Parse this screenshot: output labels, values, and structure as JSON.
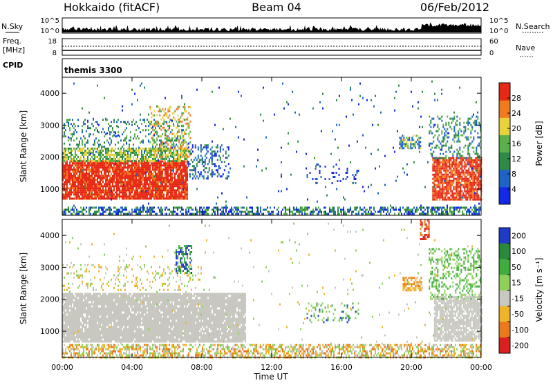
{
  "header": {
    "station": "Hokkaido (fitACF)",
    "beam": "Beam 04",
    "date": "06/Feb/2012"
  },
  "strip_labels": {
    "nsky": "N.Sky",
    "nsearch": "N.Search",
    "freq_line1": "Freq.",
    "freq_line2": "[MHz]",
    "nave": "Nave",
    "cpid": "CPID",
    "program": "themis 3300"
  },
  "strip_ticks": {
    "nsky_left": [
      "10^5",
      "10^0"
    ],
    "nsky_right": [
      "10^5",
      "10^0"
    ],
    "freq_left": [
      "18",
      "8"
    ],
    "nave_right": [
      "60",
      "0"
    ]
  },
  "axes_text": {
    "ylabel": "Slant Range [km]",
    "xlabel": "Time UT",
    "power_label": "Power [dB]",
    "velocity_label": "Velocity [m s⁻¹]"
  },
  "chart_data": [
    {
      "type": "heatmap",
      "name": "power",
      "x_range_hours": [
        0,
        24
      ],
      "x_ticks": [
        "00:00",
        "04:00",
        "08:00",
        "12:00",
        "16:00",
        "20:00",
        "00:00"
      ],
      "ylabel": "Slant Range [km]",
      "ylim": [
        180,
        4500
      ],
      "y_ticks": [
        1000,
        2000,
        3000,
        4000
      ],
      "colorbar": {
        "label": "Power [dB]",
        "ticks": [
          4,
          8,
          12,
          16,
          20,
          24,
          28
        ],
        "range": [
          0,
          32
        ],
        "colors": [
          "#1428e8",
          "#1e64c8",
          "#2e8a46",
          "#5ab04a",
          "#e8d23c",
          "#f07a1e",
          "#e62814"
        ]
      }
    },
    {
      "type": "heatmap",
      "name": "velocity",
      "x_range_hours": [
        0,
        24
      ],
      "x_ticks": [
        "00:00",
        "04:00",
        "08:00",
        "12:00",
        "16:00",
        "20:00",
        "00:00"
      ],
      "xlabel": "Time UT",
      "ylabel": "Slant Range [km]",
      "ylim": [
        180,
        4500
      ],
      "y_ticks": [
        1000,
        2000,
        3000,
        4000
      ],
      "colorbar": {
        "label": "Velocity [m s⁻¹]",
        "ticks": [
          200,
          100,
          50,
          15,
          -15,
          -50,
          -100,
          -200
        ],
        "bins": [
          {
            "color": "#1e3cc8"
          },
          {
            "color": "#2a8a3c"
          },
          {
            "color": "#3fae3f"
          },
          {
            "color": "#8ed05a"
          },
          {
            "color": "#c8c8c0"
          },
          {
            "color": "#f0b428"
          },
          {
            "color": "#ec7a1c"
          },
          {
            "color": "#dc2020"
          }
        ]
      }
    }
  ]
}
